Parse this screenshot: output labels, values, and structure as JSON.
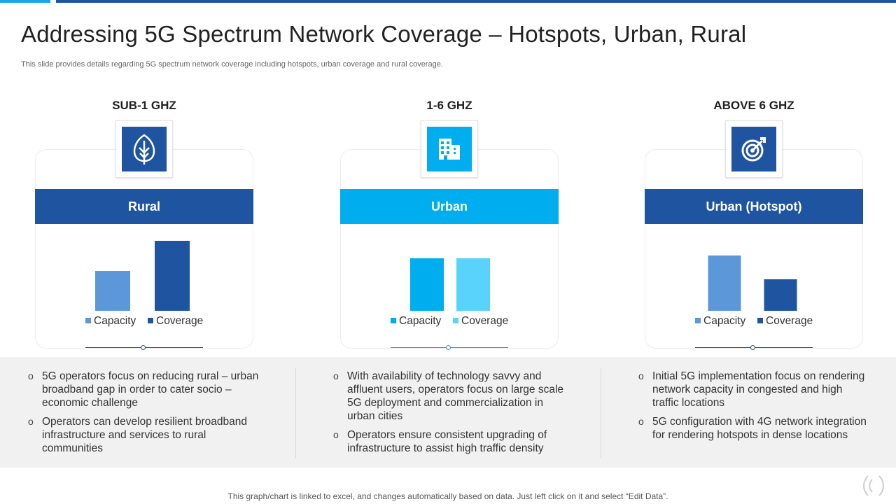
{
  "title": "Addressing 5G Spectrum Network Coverage – Hotspots, Urban, Rural",
  "subtitle": "This slide provides details regarding 5G spectrum network coverage including hotspots, urban coverage and rural coverage.",
  "footer": "This graph/chart is linked to excel, and changes automatically based on data. Just left click on it and select “Edit Data”.",
  "colors": {
    "dark_blue": "#1f55a0",
    "cyan": "#00aeef",
    "mid_blue": "#5c97d9",
    "light_cyan": "#5ad3fc",
    "panel_bg": "#f1f1f1"
  },
  "columns": [
    {
      "frequency": "SUB-1 GHZ",
      "icon": "leaf-icon",
      "banner": "Rural",
      "bullets": [
        "5G operators focus on reducing rural – urban broadband gap in order to cater socio – economic challenge",
        "Operators can develop resilient broadband infrastructure  and services to rural communities"
      ]
    },
    {
      "frequency": "1-6 GHZ",
      "icon": "office-building-icon",
      "banner": "Urban",
      "bullets": [
        "With availability of technology savvy and affluent users, operators focus on large scale 5G deployment and commercialization in urban cities",
        "Operators ensure consistent upgrading of infrastructure  to assist high traffic density"
      ]
    },
    {
      "frequency": "ABOVE 6 GHZ",
      "icon": "target-icon",
      "banner": "Urban (Hotspot)",
      "bullets": [
        "Initial 5G implementation focus on rendering network capacity in congested and high traffic locations",
        "5G configuration with 4G network integration for rendering hotspots in dense locations"
      ]
    }
  ],
  "chart_data": [
    {
      "type": "bar",
      "title": "Rural",
      "categories": [
        "Capacity",
        "Coverage"
      ],
      "values": [
        57,
        100
      ],
      "colors": [
        "#5c97d9",
        "#1f55a0"
      ],
      "legend": [
        "Capacity",
        "Coverage"
      ],
      "ylim": [
        0,
        100
      ]
    },
    {
      "type": "bar",
      "title": "Urban",
      "categories": [
        "Capacity",
        "Coverage"
      ],
      "values": [
        75,
        75
      ],
      "colors": [
        "#00aeef",
        "#5ad3fc"
      ],
      "legend": [
        "Capacity",
        "Coverage"
      ],
      "ylim": [
        0,
        100
      ]
    },
    {
      "type": "bar",
      "title": "Urban (Hotspot)",
      "categories": [
        "Capacity",
        "Coverage"
      ],
      "values": [
        79,
        45
      ],
      "colors": [
        "#5c97d9",
        "#1f55a0"
      ],
      "legend": [
        "Capacity",
        "Coverage"
      ],
      "ylim": [
        0,
        100
      ]
    }
  ]
}
